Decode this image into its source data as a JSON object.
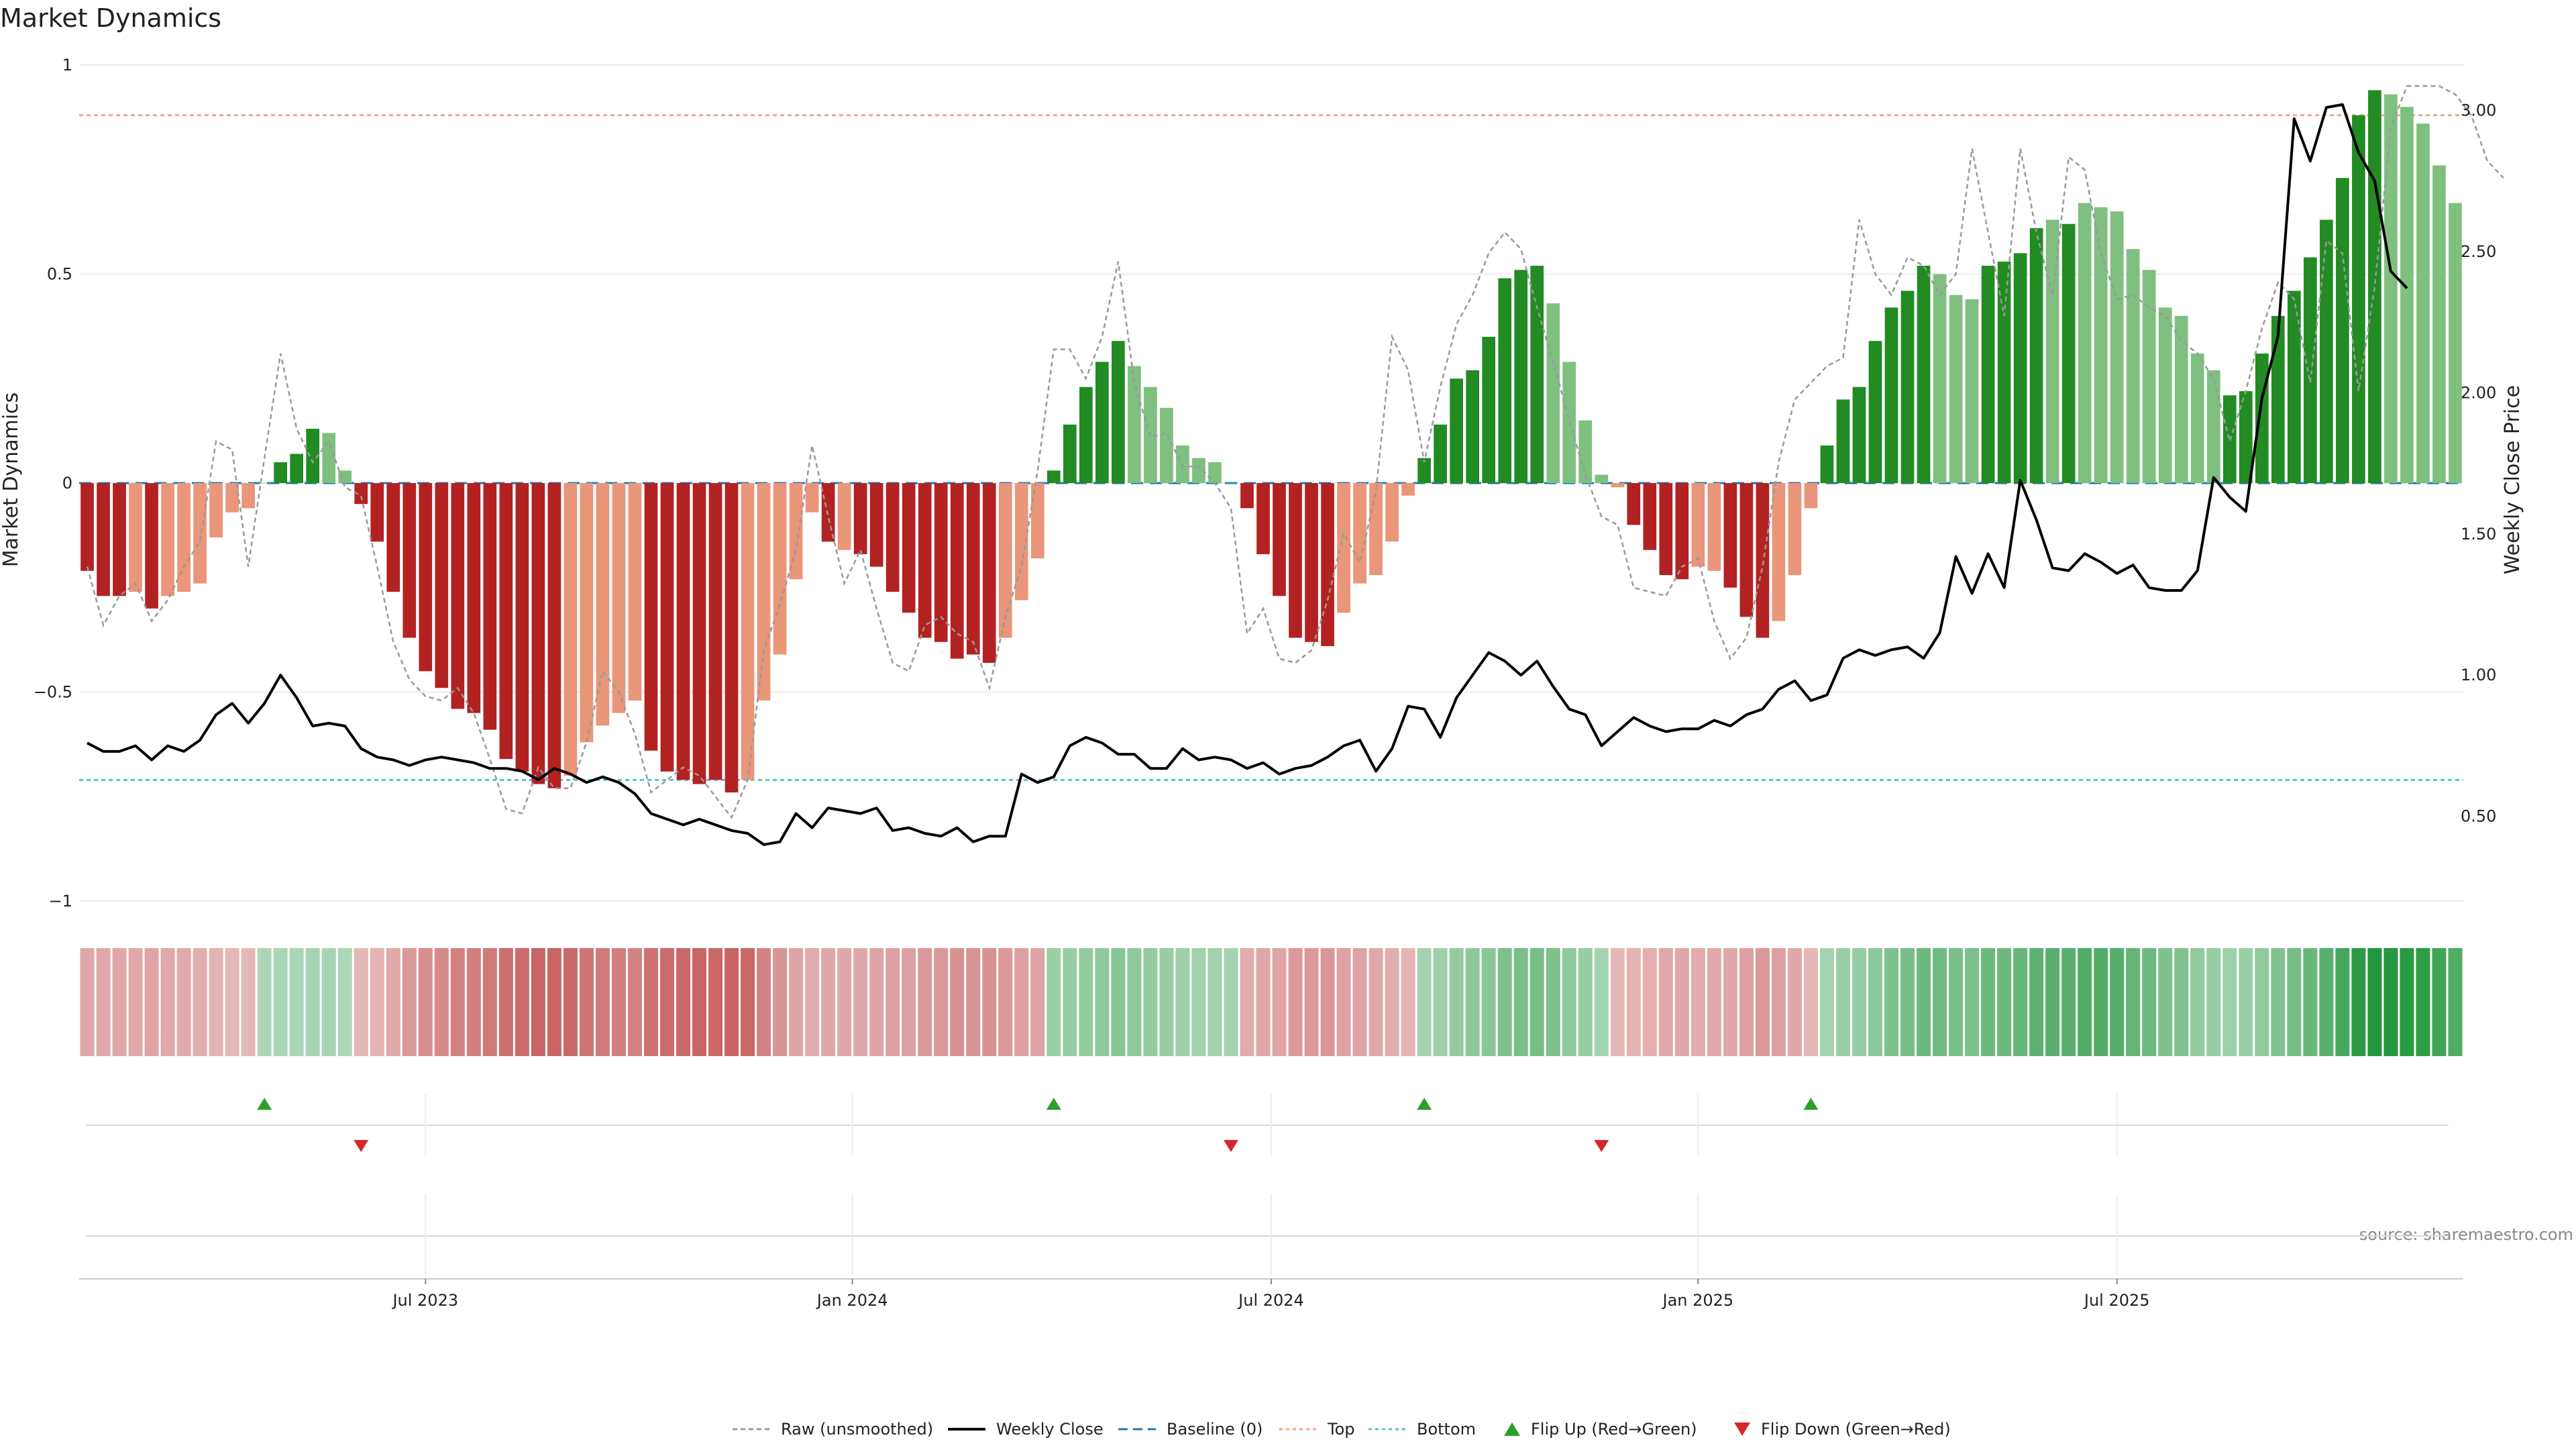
{
  "chart_data": {
    "type": "bar",
    "title": "Market Dynamics",
    "source": "source: sharemaestro.com",
    "ylabel_left": "Market Dynamics",
    "ylabel_right": "Weekly Close Price",
    "ylim_left": [
      -1,
      1
    ],
    "yticks_left": [
      1,
      0.5,
      0,
      -0.5,
      -1
    ],
    "ytick_labels_left": [
      "1",
      "0.5",
      "0",
      "−0.5",
      "−1"
    ],
    "ylim_right": [
      0.2,
      3.16
    ],
    "yticks_right": [
      3.0,
      2.5,
      2.0,
      1.5,
      1.0,
      0.5
    ],
    "ytick_labels_right": [
      "3.00",
      "2.50",
      "2.00",
      "1.50",
      "1.00",
      "0.50"
    ],
    "x_ticks": [
      "Jul 2023",
      "Jan 2024",
      "Jul 2024",
      "Jan 2025",
      "Jul 2025"
    ],
    "x_tick_weeks": [
      21.5,
      48,
      74,
      100.5,
      126.5
    ],
    "first_week": "2023-01-01",
    "top_level": 0.88,
    "bottom_level": -0.71,
    "grid": true,
    "legend_position": "bottom-center",
    "colors": {
      "strong_red": "#b22222",
      "light_red": "#e9967a",
      "strong_green": "#228b22",
      "light_green": "#7fbf7f",
      "raw_line": "#999999",
      "close_line": "#000000",
      "baseline": "#1f77b4",
      "top_line": "#f4a582",
      "bottom_line": "#5bc0cf",
      "flip_up": "#2ca02c",
      "flip_down": "#d62728"
    },
    "bar_values": [
      -0.21,
      -0.27,
      -0.27,
      -0.26,
      -0.3,
      -0.27,
      -0.26,
      -0.24,
      -0.13,
      -0.07,
      -0.06,
      0.0,
      0.05,
      0.07,
      0.13,
      0.12,
      0.03,
      -0.05,
      -0.14,
      -0.26,
      -0.37,
      -0.45,
      -0.49,
      -0.54,
      -0.55,
      -0.59,
      -0.66,
      -0.69,
      -0.72,
      -0.73,
      -0.7,
      -0.62,
      -0.58,
      -0.55,
      -0.52,
      -0.64,
      -0.69,
      -0.71,
      -0.72,
      -0.71,
      -0.74,
      -0.71,
      -0.52,
      -0.41,
      -0.23,
      -0.07,
      -0.14,
      -0.16,
      -0.17,
      -0.2,
      -0.26,
      -0.31,
      -0.37,
      -0.38,
      -0.42,
      -0.41,
      -0.43,
      -0.37,
      -0.28,
      -0.18,
      0.03,
      0.14,
      0.23,
      0.29,
      0.34,
      0.28,
      0.23,
      0.18,
      0.09,
      0.06,
      0.05,
      0.0,
      -0.06,
      -0.17,
      -0.27,
      -0.37,
      -0.38,
      -0.39,
      -0.31,
      -0.24,
      -0.22,
      -0.14,
      -0.03,
      0.06,
      0.14,
      0.25,
      0.27,
      0.35,
      0.49,
      0.51,
      0.52,
      0.43,
      0.29,
      0.15,
      0.02,
      -0.01,
      -0.1,
      -0.16,
      -0.22,
      -0.23,
      -0.2,
      -0.21,
      -0.25,
      -0.32,
      -0.37,
      -0.33,
      -0.22,
      -0.06,
      0.09,
      0.2,
      0.23,
      0.34,
      0.42,
      0.46,
      0.52,
      0.5,
      0.45,
      0.44,
      0.52,
      0.53,
      0.55,
      0.61,
      0.63,
      0.62,
      0.67,
      0.66,
      0.65,
      0.56,
      0.51,
      0.42,
      0.4,
      0.31,
      0.27,
      0.21,
      0.22,
      0.31,
      0.4,
      0.46,
      0.54,
      0.63,
      0.73,
      0.88,
      0.94,
      0.93,
      0.9,
      0.86,
      0.76,
      0.67
    ],
    "bar_shades": [
      "strong",
      "strong",
      "strong",
      "light",
      "strong",
      "light",
      "light",
      "light",
      "light",
      "light",
      "light",
      "light",
      "strong",
      "strong",
      "strong",
      "light",
      "light",
      "strong",
      "strong",
      "strong",
      "strong",
      "strong",
      "strong",
      "strong",
      "strong",
      "strong",
      "strong",
      "strong",
      "strong",
      "strong",
      "light",
      "light",
      "light",
      "light",
      "light",
      "strong",
      "strong",
      "strong",
      "strong",
      "strong",
      "strong",
      "light",
      "light",
      "light",
      "light",
      "light",
      "strong",
      "light",
      "strong",
      "strong",
      "strong",
      "strong",
      "strong",
      "strong",
      "strong",
      "strong",
      "strong",
      "light",
      "light",
      "light",
      "strong",
      "strong",
      "strong",
      "strong",
      "strong",
      "light",
      "light",
      "light",
      "light",
      "light",
      "light",
      "light",
      "strong",
      "strong",
      "strong",
      "strong",
      "strong",
      "strong",
      "light",
      "light",
      "light",
      "light",
      "light",
      "strong",
      "strong",
      "strong",
      "strong",
      "strong",
      "strong",
      "strong",
      "strong",
      "light",
      "light",
      "light",
      "light",
      "light",
      "strong",
      "strong",
      "strong",
      "strong",
      "light",
      "light",
      "strong",
      "strong",
      "strong",
      "light",
      "light",
      "light",
      "strong",
      "strong",
      "strong",
      "strong",
      "strong",
      "strong",
      "strong",
      "light",
      "light",
      "light",
      "strong",
      "strong",
      "strong",
      "strong",
      "light",
      "strong",
      "light",
      "light",
      "light",
      "light",
      "light",
      "light",
      "light",
      "light",
      "light",
      "strong",
      "strong",
      "strong",
      "strong",
      "strong",
      "strong",
      "strong",
      "strong",
      "strong",
      "strong",
      "light",
      "light",
      "light",
      "light"
    ],
    "series": [
      {
        "name": "Raw (unsmoothed)",
        "values": [
          -0.2,
          -0.34,
          -0.27,
          -0.24,
          -0.33,
          -0.28,
          -0.2,
          -0.14,
          0.1,
          0.08,
          -0.2,
          0.06,
          0.31,
          0.13,
          0.05,
          0.1,
          -0.01,
          -0.03,
          -0.2,
          -0.38,
          -0.47,
          -0.51,
          -0.52,
          -0.49,
          -0.55,
          -0.66,
          -0.78,
          -0.79,
          -0.68,
          -0.73,
          -0.73,
          -0.62,
          -0.45,
          -0.5,
          -0.6,
          -0.74,
          -0.71,
          -0.68,
          -0.7,
          -0.75,
          -0.8,
          -0.71,
          -0.4,
          -0.29,
          -0.16,
          0.09,
          -0.08,
          -0.24,
          -0.16,
          -0.3,
          -0.43,
          -0.45,
          -0.34,
          -0.32,
          -0.36,
          -0.38,
          -0.49,
          -0.32,
          -0.2,
          0.03,
          0.32,
          0.32,
          0.25,
          0.35,
          0.53,
          0.24,
          0.11,
          0.12,
          0.04,
          0.04,
          0.0,
          -0.06,
          -0.36,
          -0.3,
          -0.42,
          -0.43,
          -0.4,
          -0.28,
          -0.12,
          -0.19,
          -0.02,
          0.35,
          0.27,
          0.05,
          0.23,
          0.38,
          0.45,
          0.55,
          0.6,
          0.56,
          0.42,
          0.29,
          0.15,
          0.02,
          -0.08,
          -0.1,
          -0.25,
          -0.26,
          -0.27,
          -0.2,
          -0.18,
          -0.33,
          -0.42,
          -0.37,
          -0.2,
          0.05,
          0.2,
          0.24,
          0.28,
          0.3,
          0.63,
          0.5,
          0.45,
          0.54,
          0.52,
          0.45,
          0.5,
          0.8,
          0.6,
          0.4,
          0.8,
          0.6,
          0.45,
          0.78,
          0.75,
          0.55,
          0.44,
          0.45,
          0.42,
          0.4,
          0.34,
          0.31,
          0.25,
          0.1,
          0.22,
          0.37,
          0.48,
          0.44,
          0.24,
          0.58,
          0.55,
          0.22,
          0.47,
          0.85,
          0.95,
          0.95,
          0.95,
          0.93,
          0.88,
          0.77,
          0.73
        ]
      },
      {
        "name": "Weekly Close",
        "axis": "right",
        "values": [
          0.76,
          0.73,
          0.73,
          0.75,
          0.7,
          0.75,
          0.73,
          0.77,
          0.86,
          0.9,
          0.83,
          0.9,
          1.0,
          0.92,
          0.82,
          0.83,
          0.82,
          0.74,
          0.71,
          0.7,
          0.68,
          0.7,
          0.71,
          0.7,
          0.69,
          0.67,
          0.67,
          0.66,
          0.63,
          0.67,
          0.65,
          0.62,
          0.64,
          0.62,
          0.58,
          0.51,
          0.49,
          0.47,
          0.49,
          0.47,
          0.45,
          0.44,
          0.4,
          0.41,
          0.51,
          0.46,
          0.53,
          0.52,
          0.51,
          0.53,
          0.45,
          0.46,
          0.44,
          0.43,
          0.46,
          0.41,
          0.43,
          0.43,
          0.65,
          0.62,
          0.64,
          0.75,
          0.78,
          0.76,
          0.72,
          0.72,
          0.67,
          0.67,
          0.74,
          0.7,
          0.71,
          0.7,
          0.67,
          0.69,
          0.65,
          0.67,
          0.68,
          0.71,
          0.75,
          0.77,
          0.66,
          0.74,
          0.89,
          0.88,
          0.78,
          0.92,
          1.0,
          1.08,
          1.05,
          1.0,
          1.05,
          0.96,
          0.88,
          0.86,
          0.75,
          0.8,
          0.85,
          0.82,
          0.8,
          0.81,
          0.81,
          0.84,
          0.82,
          0.86,
          0.88,
          0.95,
          0.98,
          0.91,
          0.93,
          1.06,
          1.09,
          1.07,
          1.09,
          1.1,
          1.06,
          1.15,
          1.42,
          1.29,
          1.43,
          1.31,
          1.69,
          1.55,
          1.38,
          1.37,
          1.43,
          1.4,
          1.36,
          1.39,
          1.31,
          1.3,
          1.3,
          1.37,
          1.7,
          1.63,
          1.58,
          1.98,
          2.2,
          2.97,
          2.82,
          3.01,
          3.02,
          2.85,
          2.75,
          2.43,
          2.37
        ]
      }
    ],
    "heat_values": [
      -0.27,
      -0.27,
      -0.27,
      -0.27,
      -0.3,
      -0.27,
      -0.26,
      -0.24,
      -0.2,
      -0.18,
      -0.17,
      0.16,
      0.17,
      0.18,
      0.2,
      0.19,
      0.16,
      -0.18,
      -0.2,
      -0.26,
      -0.37,
      -0.45,
      -0.49,
      -0.54,
      -0.55,
      -0.59,
      -0.66,
      -0.69,
      -0.72,
      -0.73,
      -0.7,
      -0.62,
      -0.58,
      -0.55,
      -0.52,
      -0.64,
      -0.69,
      -0.71,
      -0.72,
      -0.71,
      -0.74,
      -0.71,
      -0.52,
      -0.41,
      -0.3,
      -0.25,
      -0.27,
      -0.27,
      -0.28,
      -0.3,
      -0.32,
      -0.33,
      -0.37,
      -0.38,
      -0.42,
      -0.41,
      -0.43,
      -0.37,
      -0.33,
      -0.3,
      0.25,
      0.27,
      0.3,
      0.33,
      0.36,
      0.32,
      0.3,
      0.27,
      0.24,
      0.22,
      0.22,
      0.2,
      -0.25,
      -0.28,
      -0.3,
      -0.37,
      -0.38,
      -0.39,
      -0.33,
      -0.3,
      -0.28,
      -0.24,
      -0.19,
      0.2,
      0.24,
      0.3,
      0.32,
      0.35,
      0.42,
      0.45,
      0.46,
      0.42,
      0.33,
      0.27,
      0.2,
      -0.18,
      -0.2,
      -0.23,
      -0.26,
      -0.27,
      -0.25,
      -0.26,
      -0.28,
      -0.32,
      -0.37,
      -0.33,
      -0.27,
      -0.18,
      0.2,
      0.26,
      0.28,
      0.34,
      0.42,
      0.46,
      0.52,
      0.5,
      0.45,
      0.44,
      0.52,
      0.53,
      0.55,
      0.61,
      0.63,
      0.62,
      0.67,
      0.66,
      0.65,
      0.56,
      0.51,
      0.42,
      0.4,
      0.31,
      0.27,
      0.24,
      0.25,
      0.31,
      0.4,
      0.46,
      0.54,
      0.63,
      0.73,
      0.88,
      0.94,
      0.93,
      0.9,
      0.86,
      0.76,
      0.67
    ],
    "flip_up_weeks": [
      11,
      60,
      83,
      107
    ],
    "flip_down_weeks": [
      17,
      71,
      94
    ]
  },
  "legend": [
    {
      "label": "Raw (unsmoothed)",
      "kind": "dashed",
      "color": "#999999"
    },
    {
      "label": "Weekly Close",
      "kind": "solid",
      "color": "#000000"
    },
    {
      "label": "Baseline (0)",
      "kind": "longdash",
      "color": "#1f77b4"
    },
    {
      "label": "Top",
      "kind": "dotted",
      "color": "#f4a582"
    },
    {
      "label": "Bottom",
      "kind": "dotted",
      "color": "#5bc0cf"
    },
    {
      "label": "Flip Up (Red→Green)",
      "kind": "up-triangle",
      "color": "#2ca02c"
    },
    {
      "label": "Flip Down (Green→Red)",
      "kind": "down-triangle",
      "color": "#d62728"
    }
  ]
}
